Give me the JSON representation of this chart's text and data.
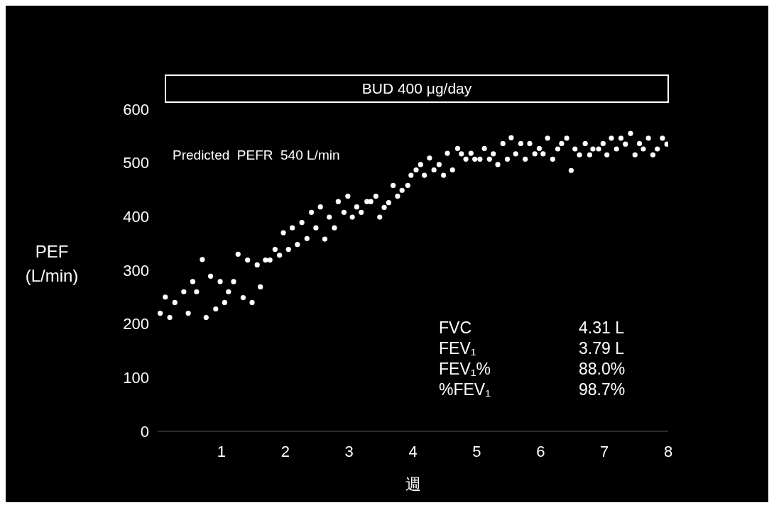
{
  "chart_data": {
    "type": "scatter",
    "xlabel": "週",
    "ylabel": "PEF (L/min)",
    "xlim": [
      0,
      8
    ],
    "xticks": [
      1,
      2,
      3,
      4,
      5,
      6,
      7,
      8
    ],
    "ylim": [
      0,
      600
    ],
    "yticks": [
      0,
      100,
      200,
      300,
      400,
      500,
      600
    ],
    "grid": false,
    "legend": false,
    "marker": "circle",
    "annotations": [
      "BUD 400 μg/day",
      "Predicted  PEFR  540 L/min",
      "FVC",
      "4.31 L",
      "FEV₁",
      "3.79 L",
      "FEV₁%",
      "88.0%",
      "%FEV₁",
      "98.7%"
    ],
    "series": [
      {
        "color": "#ffffff",
        "x": [
          0.04,
          0.12,
          0.19,
          0.27,
          0.41,
          0.48,
          0.55,
          0.61,
          0.7,
          0.76,
          0.83,
          0.91,
          0.98,
          1.05,
          1.11,
          1.19,
          1.26,
          1.34,
          1.41,
          1.48,
          1.56,
          1.61,
          1.69,
          1.76,
          1.84,
          1.91,
          1.97,
          2.05,
          2.11,
          2.19,
          2.26,
          2.34,
          2.41,
          2.48,
          2.55,
          2.62,
          2.69,
          2.77,
          2.83,
          2.92,
          2.98,
          3.05,
          3.12,
          3.19,
          3.28,
          3.34,
          3.42,
          3.48,
          3.55,
          3.62,
          3.69,
          3.76,
          3.83,
          3.92,
          3.97,
          4.05,
          4.12,
          4.18,
          4.26,
          4.33,
          4.41,
          4.48,
          4.54,
          4.62,
          4.7,
          4.76,
          4.83,
          4.91,
          4.97,
          5.05,
          5.12,
          5.2,
          5.26,
          5.33,
          5.41,
          5.48,
          5.54,
          5.61,
          5.69,
          5.76,
          5.83,
          5.91,
          5.98,
          6.04,
          6.11,
          6.19,
          6.27,
          6.33,
          6.41,
          6.48,
          6.54,
          6.61,
          6.7,
          6.77,
          6.82,
          6.91,
          6.98,
          7.04,
          7.11,
          7.19,
          7.26,
          7.33,
          7.41,
          7.48,
          7.55,
          7.61,
          7.69,
          7.76,
          7.83,
          7.91,
          7.98
        ],
        "values": [
          220,
          250,
          212,
          240,
          260,
          220,
          279,
          260,
          320,
          212,
          289,
          228,
          279,
          240,
          260,
          279,
          330,
          249,
          319,
          240,
          310,
          269,
          319,
          319,
          339,
          328,
          370,
          339,
          379,
          348,
          389,
          359,
          408,
          379,
          418,
          358,
          399,
          379,
          428,
          408,
          438,
          399,
          418,
          408,
          428,
          428,
          438,
          399,
          417,
          426,
          458,
          438,
          449,
          458,
          477,
          487,
          497,
          477,
          509,
          487,
          497,
          477,
          518,
          487,
          527,
          517,
          507,
          518,
          507,
          507,
          527,
          507,
          517,
          497,
          536,
          507,
          547,
          517,
          536,
          507,
          536,
          517,
          527,
          517,
          546,
          507,
          526,
          536,
          546,
          486,
          526,
          515,
          536,
          515,
          526,
          526,
          536,
          515,
          546,
          526,
          546,
          535,
          555,
          515,
          536,
          526,
          546,
          515,
          526,
          546,
          535
        ]
      }
    ]
  }
}
